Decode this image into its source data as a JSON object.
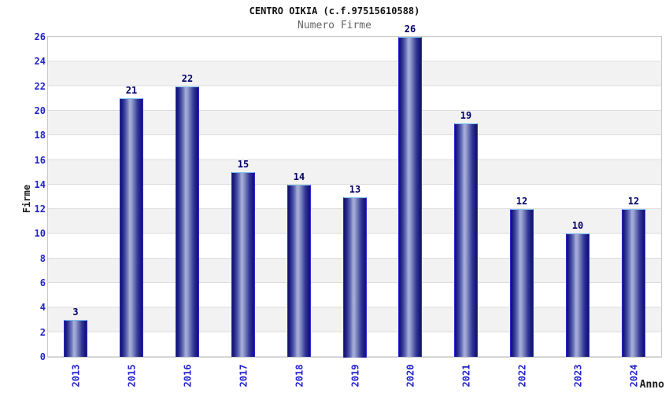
{
  "chart_data": {
    "type": "bar",
    "title": "CENTRO OIKIA (c.f.97515610588)",
    "subtitle": "Numero Firme",
    "xlabel": "Anno",
    "ylabel": "Firme",
    "categories": [
      "2013",
      "2015",
      "2016",
      "2017",
      "2018",
      "2019",
      "2020",
      "2021",
      "2022",
      "2023",
      "2024"
    ],
    "values": [
      3,
      21,
      22,
      15,
      14,
      13,
      26,
      19,
      12,
      10,
      12
    ],
    "ylim": [
      0,
      26
    ],
    "yticks": [
      0,
      2,
      4,
      6,
      8,
      10,
      12,
      14,
      16,
      18,
      20,
      22,
      24,
      26
    ],
    "grid": "horizontal alternating bands every 2 units, light gridlines",
    "legend": "none",
    "colors": {
      "bar_dark": "#14146a",
      "bar_light": "#a6aed8",
      "bar_border_top": "#7cc0f0",
      "bar_border_side": "#2a2ad0",
      "tick_label": "#2222cc",
      "value_label": "#000066",
      "band": "#f2f2f2",
      "gridline": "#dddddd",
      "plot_border": "#c9c9c9",
      "title": "#111111",
      "subtitle": "#666666",
      "axis_title": "#1a1a1a",
      "background": "#ffffff"
    }
  }
}
